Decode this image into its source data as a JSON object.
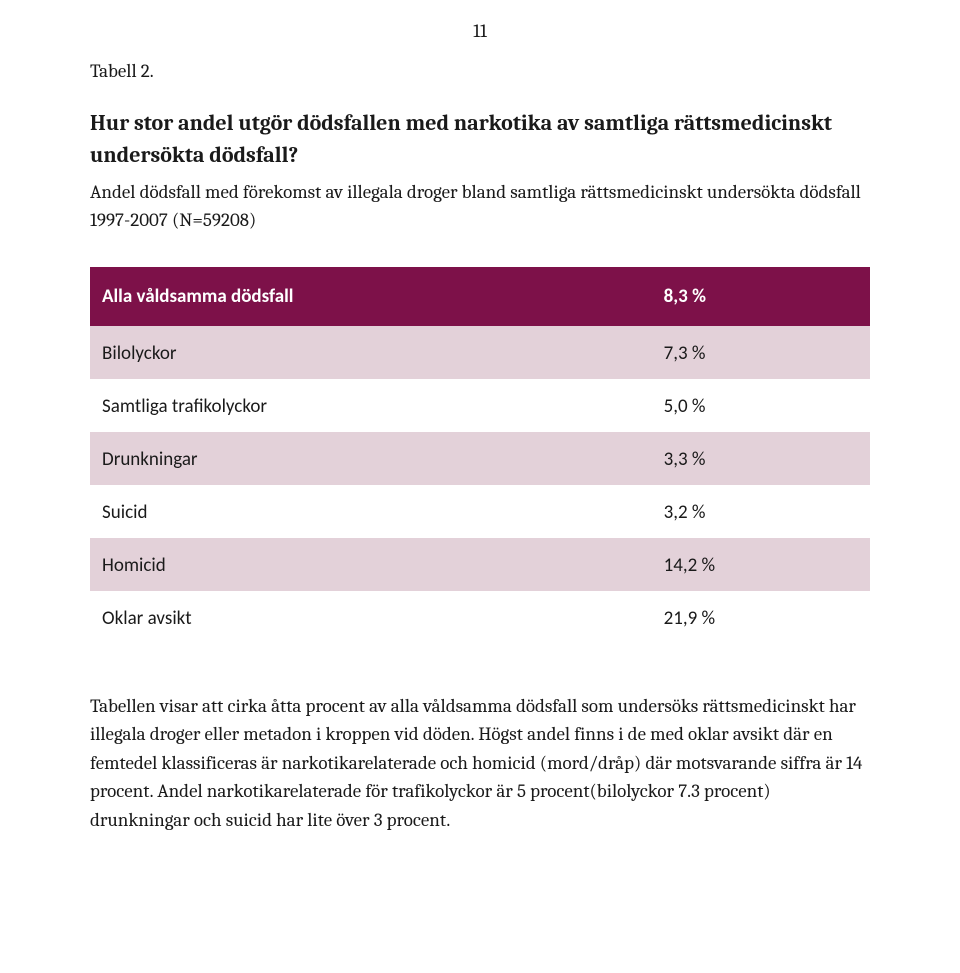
{
  "page_number": "11",
  "tabell_label": "Tabell 2.",
  "heading": "Hur stor andel utgör dödsfallen med narkotika av samtliga rättsmedicinskt undersökta dödsfall?",
  "subheading": "Andel dödsfall med förekomst av illegala droger bland samtliga rättsmedicinskt undersökta dödsfall 1997-2007 (N=59208)",
  "table": {
    "header_bg": "#7d1149",
    "header_fg": "#ffffff",
    "band_light_bg": "#e3d1d9",
    "band_white_bg": "#ffffff",
    "header": {
      "label": "Alla våldsamma dödsfall",
      "value": "8,3 %"
    },
    "rows": [
      {
        "label": "Bilolyckor",
        "value": "7,3 %",
        "band": "light"
      },
      {
        "label": "Samtliga trafikolyckor",
        "value": "5,0 %",
        "band": "white"
      },
      {
        "label": "Drunkningar",
        "value": "3,3 %",
        "band": "light"
      },
      {
        "label": "Suicid",
        "value": "3,2 %",
        "band": "white"
      },
      {
        "label": "Homicid",
        "value": "14,2 %",
        "band": "light"
      },
      {
        "label": "Oklar avsikt",
        "value": "21,9 %",
        "band": "white"
      }
    ]
  },
  "body_text": "Tabellen visar att cirka åtta procent av alla våldsamma dödsfall som undersöks rättsmedicinskt har illegala droger eller metadon i kroppen vid döden. Högst andel finns i de med oklar avsikt där en femtedel klassificeras är narkotikarelaterade och homicid (mord/dråp) där motsvarande siffra är 14 procent. Andel narkotikarelaterade för trafikolyckor är 5 procent(bilolyckor 7.3 procent) drunkningar och suicid har lite över 3 procent."
}
